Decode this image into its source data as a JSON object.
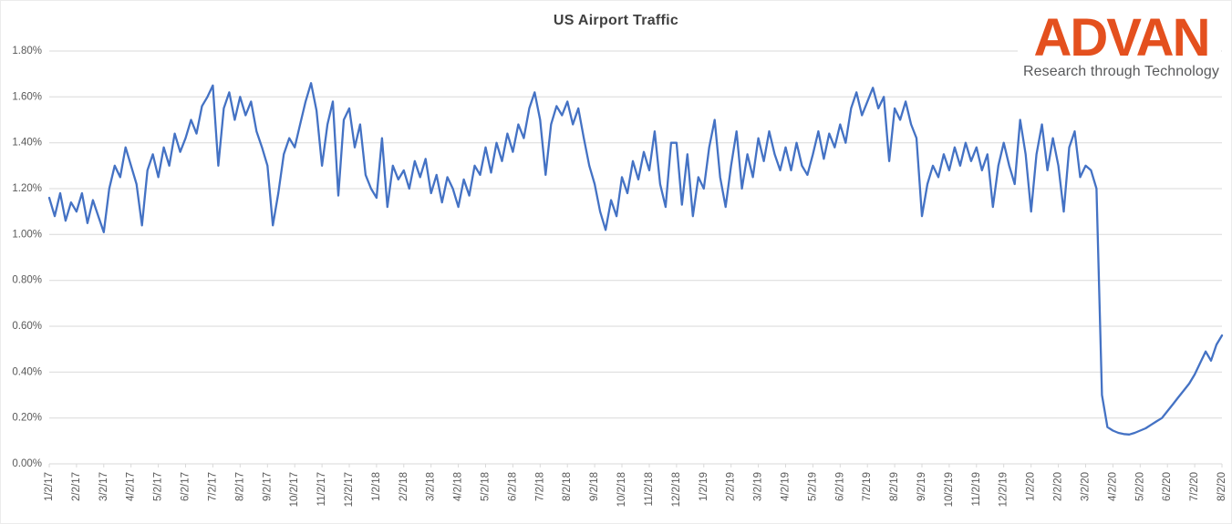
{
  "header": {
    "title": "US Airport Traffic"
  },
  "logo": {
    "text": "ADVAN",
    "tagline": "Research through Technology",
    "text_color": "#E4501E",
    "tagline_color": "#58595B"
  },
  "colors": {
    "line": "#4472C4",
    "grid": "#D9D9D9",
    "axis_text": "#595959",
    "title_text": "#404040",
    "background": "#FFFFFF"
  },
  "chart_data": {
    "type": "line",
    "title": "US Airport Traffic",
    "xlabel": "",
    "ylabel": "",
    "unit": "percent",
    "grid": "horizontal",
    "legend_position": "none",
    "ylim": [
      0,
      1.8
    ],
    "y_axis": {
      "tick_format": "0.00%",
      "ticks": [
        {
          "value": 0.0,
          "label": "0.00%"
        },
        {
          "value": 0.2,
          "label": "0.20%"
        },
        {
          "value": 0.4,
          "label": "0.40%"
        },
        {
          "value": 0.6,
          "label": "0.60%"
        },
        {
          "value": 0.8,
          "label": "0.80%"
        },
        {
          "value": 1.0,
          "label": "1.00%"
        },
        {
          "value": 1.2,
          "label": "1.20%"
        },
        {
          "value": 1.4,
          "label": "1.40%"
        },
        {
          "value": 1.6,
          "label": "1.60%"
        },
        {
          "value": 1.8,
          "label": "1.80%"
        }
      ]
    },
    "x_axis": {
      "label_rotation": -90,
      "start": "1/2/17",
      "end": "8/2/20",
      "tick_labels": [
        "1/2/17",
        "2/2/17",
        "3/2/17",
        "4/2/17",
        "5/2/17",
        "6/2/17",
        "7/2/17",
        "8/2/17",
        "9/2/17",
        "10/2/17",
        "11/2/17",
        "12/2/17",
        "1/2/18",
        "2/2/18",
        "3/2/18",
        "4/2/18",
        "5/2/18",
        "6/2/18",
        "7/2/18",
        "8/2/18",
        "9/2/18",
        "10/2/18",
        "11/2/18",
        "12/2/18",
        "1/2/19",
        "2/2/19",
        "3/2/19",
        "4/2/19",
        "5/2/19",
        "6/2/19",
        "7/2/19",
        "8/2/19",
        "9/2/19",
        "10/2/19",
        "11/2/19",
        "12/2/19",
        "1/2/20",
        "2/2/20",
        "3/2/20",
        "4/2/20",
        "5/2/20",
        "6/2/20",
        "7/2/20",
        "8/2/20"
      ]
    },
    "sampling_note": "values in % sampled ~weekly (5 points per month interval) from 1/2/17 to 8/2/20",
    "series": [
      {
        "name": "US Airport Traffic",
        "color": "#4472C4",
        "values": [
          1.16,
          1.08,
          1.18,
          1.06,
          1.14,
          1.1,
          1.18,
          1.05,
          1.15,
          1.08,
          1.01,
          1.2,
          1.3,
          1.25,
          1.38,
          1.3,
          1.22,
          1.04,
          1.28,
          1.35,
          1.25,
          1.38,
          1.3,
          1.44,
          1.36,
          1.42,
          1.5,
          1.44,
          1.56,
          1.6,
          1.65,
          1.3,
          1.55,
          1.62,
          1.5,
          1.6,
          1.52,
          1.58,
          1.45,
          1.38,
          1.3,
          1.04,
          1.18,
          1.35,
          1.42,
          1.38,
          1.48,
          1.58,
          1.66,
          1.54,
          1.3,
          1.48,
          1.58,
          1.17,
          1.5,
          1.55,
          1.38,
          1.48,
          1.26,
          1.2,
          1.16,
          1.42,
          1.12,
          1.3,
          1.24,
          1.28,
          1.2,
          1.32,
          1.25,
          1.33,
          1.18,
          1.26,
          1.14,
          1.25,
          1.2,
          1.12,
          1.24,
          1.17,
          1.3,
          1.26,
          1.38,
          1.27,
          1.4,
          1.32,
          1.44,
          1.36,
          1.48,
          1.42,
          1.55,
          1.62,
          1.5,
          1.26,
          1.48,
          1.56,
          1.52,
          1.58,
          1.48,
          1.55,
          1.42,
          1.3,
          1.22,
          1.1,
          1.02,
          1.15,
          1.08,
          1.25,
          1.18,
          1.32,
          1.24,
          1.36,
          1.28,
          1.45,
          1.22,
          1.12,
          1.4,
          1.4,
          1.13,
          1.35,
          1.08,
          1.25,
          1.2,
          1.38,
          1.5,
          1.25,
          1.12,
          1.3,
          1.45,
          1.2,
          1.35,
          1.25,
          1.42,
          1.32,
          1.45,
          1.35,
          1.28,
          1.38,
          1.28,
          1.4,
          1.3,
          1.26,
          1.35,
          1.45,
          1.33,
          1.44,
          1.38,
          1.48,
          1.4,
          1.55,
          1.62,
          1.52,
          1.58,
          1.64,
          1.55,
          1.6,
          1.32,
          1.55,
          1.5,
          1.58,
          1.48,
          1.42,
          1.08,
          1.22,
          1.3,
          1.25,
          1.35,
          1.28,
          1.38,
          1.3,
          1.4,
          1.32,
          1.38,
          1.28,
          1.35,
          1.12,
          1.3,
          1.4,
          1.3,
          1.22,
          1.5,
          1.35,
          1.1,
          1.35,
          1.48,
          1.28,
          1.42,
          1.3,
          1.1,
          1.38,
          1.45,
          1.25,
          1.3,
          1.28,
          1.2,
          0.3,
          0.16,
          0.145,
          0.135,
          0.13,
          0.128,
          0.135,
          0.145,
          0.155,
          0.17,
          0.185,
          0.2,
          0.23,
          0.26,
          0.29,
          0.32,
          0.35,
          0.39,
          0.44,
          0.49,
          0.45,
          0.52,
          0.56
        ]
      }
    ]
  }
}
